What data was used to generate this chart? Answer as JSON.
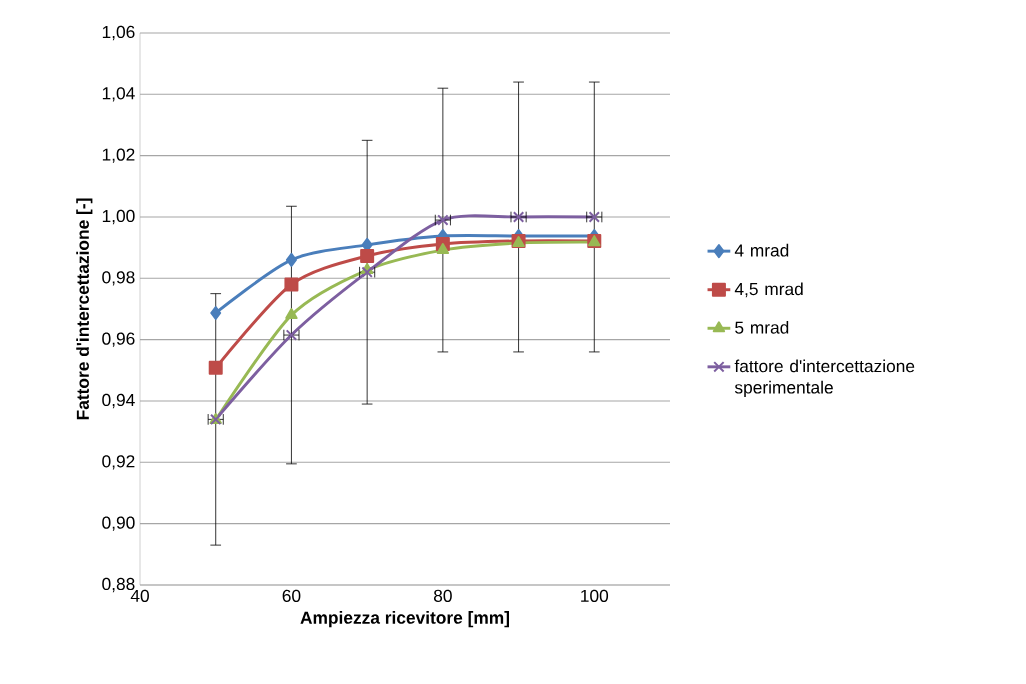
{
  "chart_data": {
    "type": "line",
    "xlabel": "Ampiezza ricevitore [mm]",
    "ylabel": "Fattore d'intercettazione [-]",
    "x": [
      50,
      60,
      70,
      80,
      90,
      100
    ],
    "xlim": [
      40,
      110
    ],
    "xticks": [
      40,
      60,
      80,
      100
    ],
    "ylim": [
      0.88,
      1.06
    ],
    "yticks": [
      {
        "value": 0.88,
        "label": "0,88"
      },
      {
        "value": 0.9,
        "label": "0,90"
      },
      {
        "value": 0.92,
        "label": "0,92"
      },
      {
        "value": 0.94,
        "label": "0,94"
      },
      {
        "value": 0.96,
        "label": "0,96"
      },
      {
        "value": 0.98,
        "label": "0,98"
      },
      {
        "value": 1.0,
        "label": "1,00"
      },
      {
        "value": 1.02,
        "label": "1,02"
      },
      {
        "value": 1.04,
        "label": "1,04"
      },
      {
        "value": 1.06,
        "label": "1,06"
      }
    ],
    "grid": "y",
    "legend": "right",
    "series": [
      {
        "name": "4 mrad",
        "color": "#4a7ebb",
        "marker": "diamond",
        "values": [
          0.9687,
          0.986,
          0.9909,
          0.9938,
          0.9938,
          0.9938
        ]
      },
      {
        "name": "4,5 mrad",
        "color": "#be4b48",
        "marker": "square",
        "values": [
          0.9508,
          0.978,
          0.9873,
          0.9912,
          0.9922,
          0.9922
        ]
      },
      {
        "name": "5 mrad",
        "color": "#98b954",
        "marker": "triangle",
        "values": [
          0.9338,
          0.968,
          0.9827,
          0.9892,
          0.9915,
          0.9918
        ]
      },
      {
        "name": "fattore d'intercettazione sperimentale",
        "color": "#7d5fa0",
        "marker": "cross",
        "values": [
          0.934,
          0.9615,
          0.982,
          0.999,
          1.0,
          1.0
        ],
        "errors": [
          0.041,
          0.042,
          0.043,
          0.043,
          0.044,
          0.044
        ],
        "xerrors": [
          1,
          1,
          1,
          1,
          1,
          1
        ]
      }
    ]
  }
}
